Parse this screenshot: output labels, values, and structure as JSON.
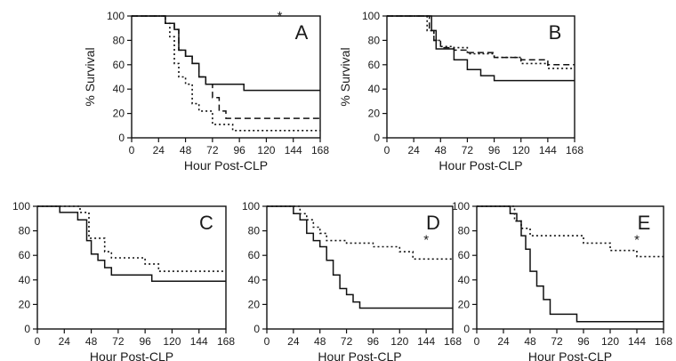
{
  "chart_data": [
    {
      "panel": "A",
      "type": "line",
      "step": true,
      "xlabel": "Hour Post-CLP",
      "ylabel": "% Survival",
      "xlim": [
        0,
        168
      ],
      "ylim": [
        0,
        100
      ],
      "xticks": [
        "0",
        "24",
        "48",
        "72",
        "96",
        "120",
        "144",
        "168"
      ],
      "yticks": [
        "0",
        "20",
        "40",
        "60",
        "80",
        "100"
      ],
      "annotation": "*",
      "series": [
        {
          "style": "solid",
          "x": [
            0,
            22,
            30,
            38,
            42,
            48,
            54,
            60,
            66,
            100,
            168
          ],
          "y": [
            100,
            100,
            94,
            89,
            72,
            67,
            61,
            50,
            44,
            39,
            39
          ]
        },
        {
          "style": "dashed",
          "x": [
            0,
            22,
            30,
            38,
            42,
            48,
            54,
            60,
            66,
            72,
            78,
            84,
            168
          ],
          "y": [
            100,
            100,
            94,
            89,
            72,
            67,
            61,
            50,
            44,
            33,
            22,
            16,
            16
          ]
        },
        {
          "style": "dotted",
          "x": [
            0,
            20,
            30,
            34,
            38,
            42,
            48,
            54,
            60,
            72,
            90,
            168
          ],
          "y": [
            100,
            100,
            94,
            83,
            61,
            50,
            44,
            28,
            22,
            11,
            6,
            6
          ]
        }
      ]
    },
    {
      "panel": "B",
      "type": "line",
      "step": true,
      "xlabel": "Hour Post-CLP",
      "ylabel": "% Survival",
      "xlim": [
        0,
        168
      ],
      "ylim": [
        0,
        100
      ],
      "xticks": [
        "0",
        "24",
        "48",
        "72",
        "96",
        "120",
        "144",
        "168"
      ],
      "yticks": [
        "0",
        "20",
        "40",
        "60",
        "80",
        "100"
      ],
      "series": [
        {
          "style": "solid",
          "x": [
            0,
            36,
            40,
            44,
            60,
            72,
            84,
            96,
            168
          ],
          "y": [
            100,
            100,
            88,
            73,
            64,
            56,
            51,
            47,
            47
          ]
        },
        {
          "style": "dashed",
          "x": [
            0,
            34,
            38,
            42,
            48,
            60,
            72,
            96,
            120,
            144,
            168
          ],
          "y": [
            100,
            100,
            88,
            80,
            74,
            72,
            70,
            66,
            64,
            60,
            60
          ]
        },
        {
          "style": "dotted",
          "x": [
            0,
            30,
            36,
            42,
            48,
            60,
            72,
            96,
            120,
            144,
            168
          ],
          "y": [
            100,
            100,
            88,
            80,
            75,
            74,
            69,
            66,
            61,
            57,
            57
          ]
        }
      ]
    },
    {
      "panel": "C",
      "type": "line",
      "step": true,
      "xlabel": "Hour Post-CLP",
      "xlim": [
        0,
        168
      ],
      "ylim": [
        0,
        100
      ],
      "xticks": [
        "0",
        "24",
        "48",
        "72",
        "96",
        "120",
        "144",
        "168"
      ],
      "yticks": [
        "0",
        "20",
        "40",
        "60",
        "80",
        "100"
      ],
      "series": [
        {
          "style": "solid",
          "x": [
            0,
            20,
            36,
            44,
            48,
            54,
            60,
            66,
            102,
            168
          ],
          "y": [
            100,
            95,
            89,
            72,
            61,
            56,
            50,
            44,
            39,
            39
          ]
        },
        {
          "style": "dotted",
          "x": [
            0,
            38,
            46,
            60,
            66,
            96,
            108,
            168
          ],
          "y": [
            100,
            95,
            74,
            63,
            58,
            53,
            47,
            47
          ]
        }
      ]
    },
    {
      "panel": "D",
      "type": "line",
      "step": true,
      "xlabel": "Hour Post-CLP",
      "xlim": [
        0,
        168
      ],
      "ylim": [
        0,
        100
      ],
      "xticks": [
        "0",
        "24",
        "48",
        "72",
        "96",
        "120",
        "144",
        "168"
      ],
      "yticks": [
        "0",
        "20",
        "40",
        "60",
        "80",
        "100"
      ],
      "annotation": "*",
      "series": [
        {
          "style": "solid",
          "x": [
            0,
            24,
            30,
            36,
            42,
            48,
            54,
            60,
            66,
            72,
            78,
            84,
            168
          ],
          "y": [
            100,
            94,
            89,
            78,
            72,
            67,
            56,
            44,
            33,
            28,
            22,
            17,
            17
          ]
        },
        {
          "style": "dotted",
          "x": [
            0,
            30,
            36,
            42,
            48,
            54,
            72,
            96,
            120,
            132,
            168
          ],
          "y": [
            100,
            94,
            89,
            83,
            78,
            72,
            70,
            67,
            63,
            57,
            57
          ]
        }
      ]
    },
    {
      "panel": "E",
      "type": "line",
      "step": true,
      "xlabel": "Hour Post-CLP",
      "xlim": [
        0,
        168
      ],
      "ylim": [
        0,
        100
      ],
      "xticks": [
        "0",
        "24",
        "48",
        "72",
        "96",
        "120",
        "144",
        "168"
      ],
      "yticks": [
        "0",
        "20",
        "40",
        "60",
        "80",
        "100"
      ],
      "annotation": "*",
      "series": [
        {
          "style": "solid",
          "x": [
            0,
            30,
            36,
            40,
            44,
            48,
            54,
            60,
            66,
            90,
            168
          ],
          "y": [
            100,
            94,
            88,
            76,
            65,
            47,
            35,
            24,
            12,
            6,
            6
          ]
        },
        {
          "style": "dotted",
          "x": [
            0,
            34,
            40,
            48,
            66,
            96,
            120,
            144,
            168
          ],
          "y": [
            100,
            88,
            82,
            76,
            76,
            70,
            64,
            59,
            59
          ]
        }
      ]
    }
  ]
}
